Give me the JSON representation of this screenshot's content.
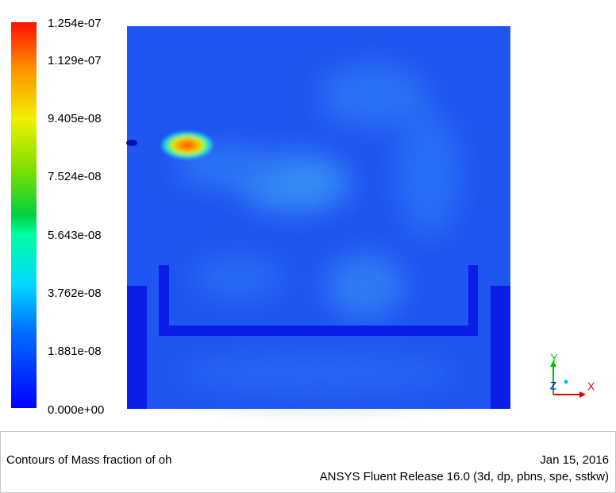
{
  "colorbar": {
    "labels": [
      "1.254e-07",
      "1.129e-07",
      "9.405e-08",
      "7.524e-08",
      "5.643e-08",
      "3.762e-08",
      "1.881e-08",
      "0.000e+00"
    ]
  },
  "footer": {
    "title": "Contours of Mass fraction of oh",
    "date": "Jan 15, 2016",
    "release": "ANSYS Fluent Release 16.0 (3d, dp, pbns, spe, sstkw)"
  },
  "triad": {
    "x": "X",
    "y": "Y",
    "z": "Z"
  }
}
